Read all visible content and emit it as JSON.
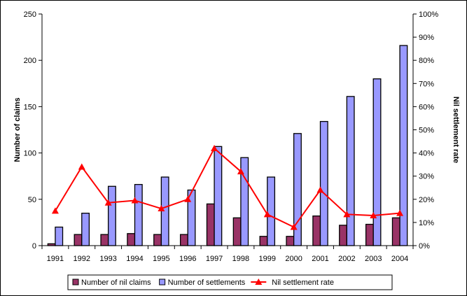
{
  "chart_data": {
    "type": "bar",
    "categories": [
      "1991",
      "1992",
      "1993",
      "1994",
      "1995",
      "1996",
      "1997",
      "1998",
      "1999",
      "2000",
      "2001",
      "2002",
      "2003",
      "2004"
    ],
    "series": [
      {
        "name": "Number of nil claims",
        "kind": "bar",
        "axis": "left",
        "color": "#993366",
        "values": [
          2,
          12,
          12,
          13,
          12,
          12,
          45,
          30,
          10,
          10,
          32,
          22,
          23,
          30
        ]
      },
      {
        "name": "Number of settlements",
        "kind": "bar",
        "axis": "left",
        "color": "#9999FF",
        "values": [
          20,
          35,
          64,
          66,
          74,
          60,
          107,
          95,
          74,
          121,
          134,
          161,
          180,
          216
        ]
      },
      {
        "name": "Nil settlement rate",
        "kind": "line",
        "axis": "right",
        "color": "#FF0000",
        "marker": "triangle",
        "values": [
          15,
          34,
          18.5,
          19.5,
          16,
          20,
          42,
          32,
          13.5,
          8,
          24,
          13.5,
          13,
          14
        ]
      }
    ],
    "ylabel": "Number of claims",
    "y2label": "Nil settlement rate",
    "ylim": [
      0,
      250
    ],
    "yticks": [
      "0",
      "50",
      "100",
      "150",
      "200",
      "250"
    ],
    "y2lim": [
      0,
      100
    ],
    "y2ticks": [
      "0%",
      "10%",
      "20%",
      "30%",
      "40%",
      "50%",
      "60%",
      "70%",
      "80%",
      "90%",
      "100%"
    ],
    "grid": false,
    "legend": "bottom"
  }
}
